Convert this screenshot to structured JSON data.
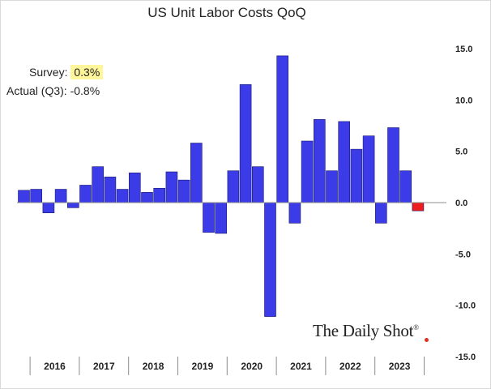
{
  "chart_data": {
    "type": "bar",
    "title": "US Unit Labor Costs QoQ",
    "xlabel": "",
    "ylabel": "",
    "ylim": [
      -15,
      15
    ],
    "y_ticks": [
      15,
      10,
      5,
      0,
      -5,
      -10,
      -15
    ],
    "y_tick_labels": [
      "15.0",
      "10.0",
      "5.0",
      "0.0",
      "-5.0",
      "-10.0",
      "-15.0"
    ],
    "year_labels": [
      "2016",
      "2017",
      "2018",
      "2019",
      "2020",
      "2021",
      "2022",
      "2023"
    ],
    "values": [
      1.2,
      1.3,
      -1.0,
      1.3,
      -0.5,
      1.7,
      3.5,
      2.5,
      1.3,
      2.9,
      1.0,
      1.4,
      3.0,
      2.2,
      5.8,
      -2.9,
      -3.0,
      3.1,
      11.5,
      3.5,
      -11.1,
      14.3,
      -2.0,
      6.0,
      8.1,
      3.1,
      7.9,
      5.2,
      6.5,
      -2.0,
      7.3,
      3.1,
      -0.8
    ],
    "bar_color": "#3b3be8",
    "highlight_index": 32,
    "highlight_color": "#ee1c1c"
  },
  "annotation": {
    "survey_label": "Survey:",
    "survey_value": "0.3%",
    "actual_label": "Actual (Q3):",
    "actual_value": "-0.8%"
  },
  "brand": {
    "name": "The Daily Shot",
    "mark": "®"
  }
}
